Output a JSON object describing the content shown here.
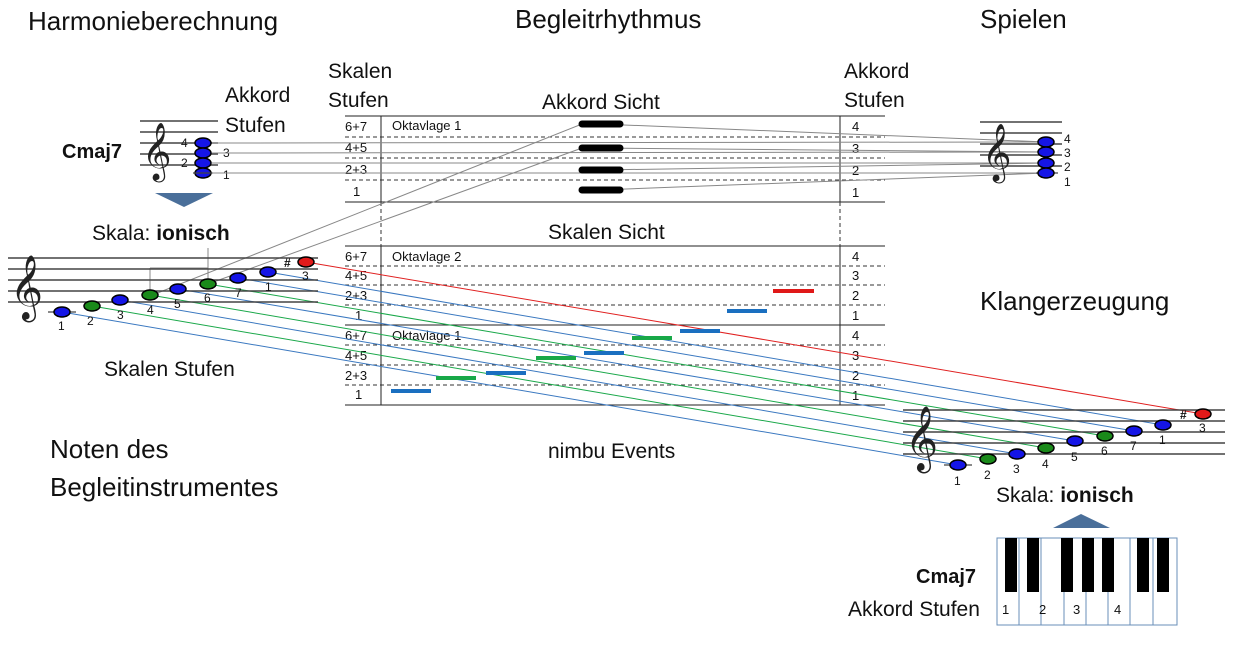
{
  "sections": {
    "harmony": "Harmonieberechnung",
    "rhythm": "Begleitrhythmus",
    "play": "Spielen",
    "sound": "Klangerzeugung",
    "instrument_notes_1": "Noten des",
    "instrument_notes_2": "Begleitinstrumentes",
    "events": "nimbu Events"
  },
  "labels": {
    "scale_steps_1": "Skalen",
    "scale_steps_2": "Stufen",
    "chord_steps_1": "Akkord",
    "chord_steps_2": "Stufen",
    "chord_view": "Akkord  Sicht",
    "scale_view": "Skalen  Sicht",
    "scale_steps_caption": "Skalen Stufen",
    "chord_steps_caption": "Akkord Stufen",
    "octave_1": "Oktavlage  1",
    "octave_2": "Oktavlage 2",
    "octave_1b": "Oktavlage 1",
    "chord_name": "Cmaj7",
    "scale_prefix": "Skala: ",
    "scale_name": "ionisch"
  },
  "row_labels": [
    "6+7",
    "4+5",
    "2+3",
    "1"
  ],
  "chord_degrees": [
    "4",
    "3",
    "2",
    "1"
  ],
  "scale_degrees": [
    "1",
    "2",
    "3",
    "4",
    "5",
    "6",
    "7",
    "1",
    "3"
  ],
  "key_labels": [
    "1",
    "2",
    "3",
    "4"
  ],
  "sharp": "#",
  "colors": {
    "blue_note": "#1515e6",
    "green_note": "#1a8a1a",
    "red_note": "#e21a1a",
    "blue_line": "#3a78c0",
    "green_line": "#1aa84a",
    "red_line": "#e02020",
    "blue_event": "#1a6fc0",
    "green_event": "#18a848",
    "red_event": "#e01818",
    "black_event": "#000000",
    "arrow": "#4a6f9a"
  }
}
